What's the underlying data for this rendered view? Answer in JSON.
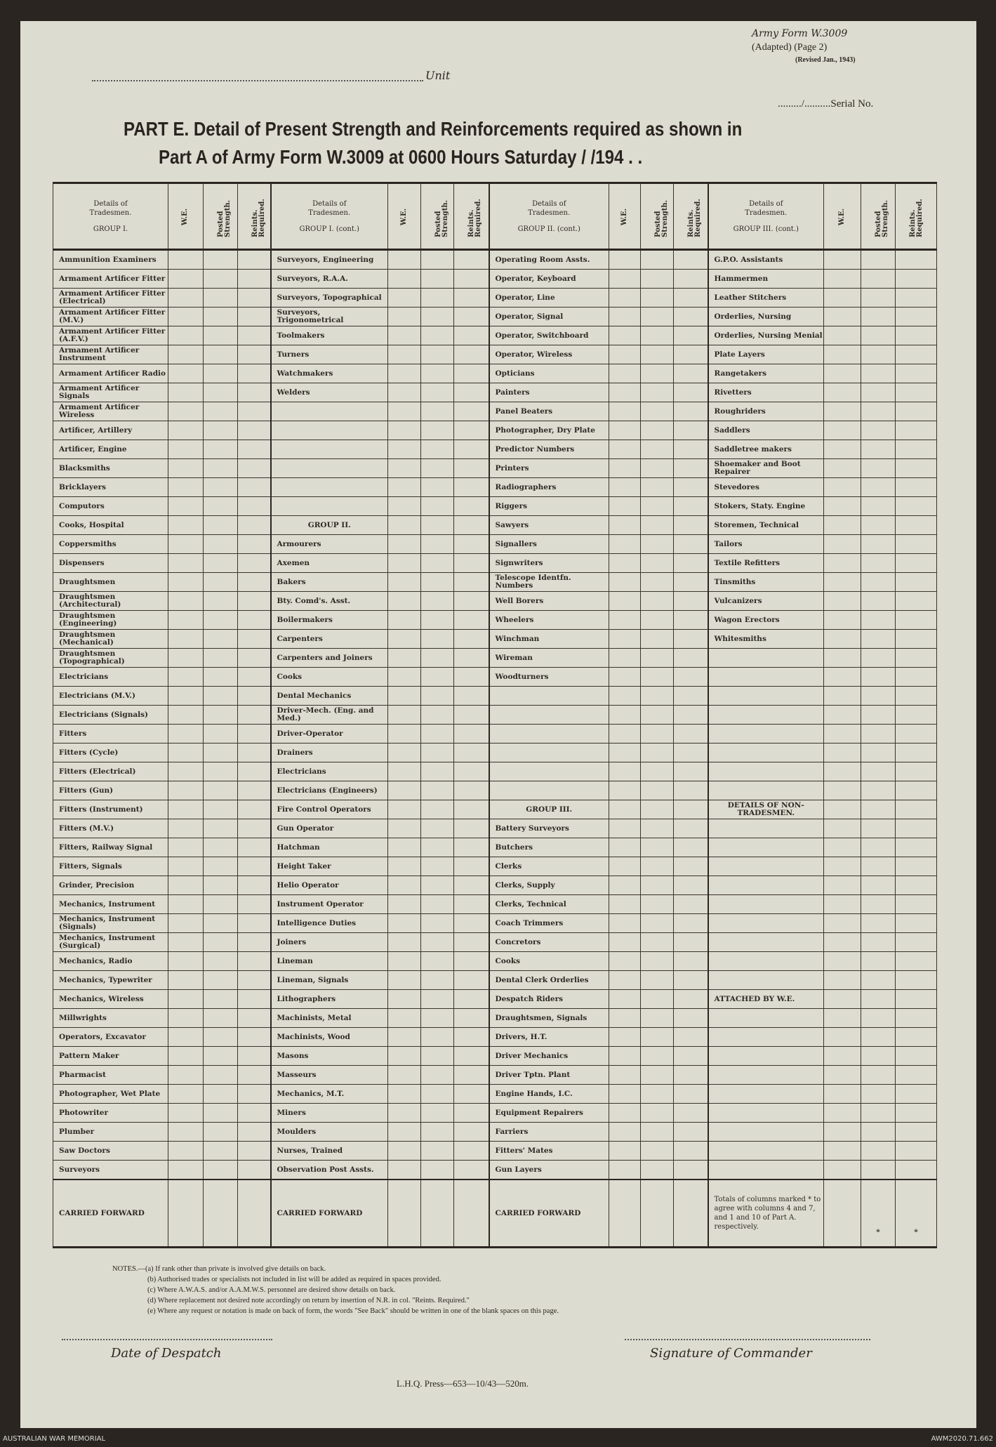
{
  "header": {
    "unit_label": "Unit",
    "form_name": "Army Form W.3009",
    "adapted": "(Adapted) (Page 2)",
    "revised": "(Revised Jan., 1943)",
    "serial_label": "........./..........Serial No."
  },
  "title": {
    "line1": "PART E.  Detail of Present Strength and Reinforcements required as shown in",
    "line2": "Part A of Army Form W.3009 at 0600 Hours Saturday      /      /194  .  ."
  },
  "columns": {
    "we": "W.E.",
    "posted": "Posted Strength.",
    "reinf": "Reints. Required.",
    "details": "Details of Tradesmen."
  },
  "groups": [
    {
      "header": "GROUP I.",
      "rows": [
        "Ammunition Examiners",
        "Armament Artificer Fitter",
        "Armament Artificer Fitter (Electrical)",
        "Armament Artificer Fitter (M.V.)",
        "Armament Artificer Fitter (A.F.V.)",
        "Armament Artificer Instrument",
        "Armament Artificer Radio",
        "Armament Artificer Signals",
        "Armament Artificer Wireless",
        "Artificer, Artillery",
        "Artificer, Engine",
        "Blacksmiths",
        "Bricklayers",
        "Computors",
        "Cooks, Hospital",
        "Coppersmiths",
        "Dispensers",
        "Draughtsmen",
        "Draughtsmen (Architectural)",
        "Draughtsmen (Engineering)",
        "Draughtsmen (Mechanical)",
        "Draughtsmen (Topographical)",
        "Electricians",
        "Electricians (M.V.)",
        "Electricians (Signals)",
        "Fitters",
        "Fitters (Cycle)",
        "Fitters (Electrical)",
        "Fitters (Gun)",
        "Fitters (Instrument)",
        "Fitters (M.V.)",
        "Fitters, Railway Signal",
        "Fitters, Signals",
        "Grinder, Precision",
        "Mechanics, Instrument",
        "Mechanics, Instrument (Signals)",
        "Mechanics, Instrument (Surgical)",
        "Mechanics, Radio",
        "Mechanics, Typewriter",
        "Mechanics, Wireless",
        "Millwrights",
        "Operators, Excavator",
        "Pattern Maker",
        "Pharmacist",
        "Photographer, Wet Plate",
        "Photowriter",
        "Plumber",
        "Saw Doctors",
        "Surveyors"
      ],
      "footer": "CARRIED FORWARD"
    },
    {
      "header": "GROUP I. (cont.)",
      "rows": [
        "Surveyors, Engineering",
        "Surveyors, R.A.A.",
        "Surveyors, Topographical",
        "Surveyors, Trigonometrical",
        "Toolmakers",
        "Turners",
        "Watchmakers",
        "Welders",
        "",
        "",
        "",
        "",
        "",
        "",
        {
          "heading": "GROUP II."
        },
        "Armourers",
        "Axemen",
        "Bakers",
        "Bty. Comd's. Asst.",
        "Boilermakers",
        "Carpenters",
        "Carpenters and Joiners",
        "Cooks",
        "Dental Mechanics",
        "Driver-Mech. (Eng. and Med.)",
        "Driver-Operator",
        "Drainers",
        "Electricians",
        "Electricians (Engineers)",
        "Fire Control Operators",
        "Gun Operator",
        "Hatchman",
        "Height Taker",
        "Helio Operator",
        "Instrument Operator",
        "Intelligence Duties",
        "Joiners",
        "Lineman",
        "Lineman, Signals",
        "Lithographers",
        "Machinists, Metal",
        "Machinists, Wood",
        "Masons",
        "Masseurs",
        "Mechanics, M.T.",
        "Miners",
        "Moulders",
        "Nurses, Trained",
        "Observation Post Assts."
      ],
      "footer": "CARRIED FORWARD"
    },
    {
      "header": "GROUP II. (cont.)",
      "rows": [
        "Operating Room Assts.",
        "Operator, Keyboard",
        "Operator, Line",
        "Operator, Signal",
        "Operator, Switchboard",
        "Operator, Wireless",
        "Opticians",
        "Painters",
        "Panel Beaters",
        "Photographer, Dry Plate",
        "Predictor Numbers",
        "Printers",
        "Radiographers",
        "Riggers",
        "Sawyers",
        "Signallers",
        "Signwriters",
        "Telescope Identfn. Numbers",
        "Well Borers",
        "Wheelers",
        "Winchman",
        "Wireman",
        "Woodturners",
        "",
        "",
        "",
        "",
        "",
        "",
        {
          "heading": "GROUP III."
        },
        "Battery Surveyors",
        "Butchers",
        "Clerks",
        "Clerks, Supply",
        "Clerks, Technical",
        "Coach Trimmers",
        "Concretors",
        "Cooks",
        "Dental Clerk Orderlies",
        "Despatch Riders",
        "Draughtsmen, Signals",
        "Drivers, H.T.",
        "Driver Mechanics",
        "Driver Tptn. Plant",
        "Engine Hands, I.C.",
        "Equipment Repairers",
        "Farriers",
        "Fitters' Mates",
        "Gun Layers"
      ],
      "footer": "CARRIED FORWARD"
    },
    {
      "header": "GROUP III. (cont.)",
      "rows": [
        "G.P.O. Assistants",
        "Hammermen",
        "Leather Stitchers",
        "Orderlies, Nursing",
        "Orderlies, Nursing Menial",
        "Plate Layers",
        "Rangetakers",
        "Rivetters",
        "Roughriders",
        "Saddlers",
        "Saddletree makers",
        "Shoemaker and Boot Repairer",
        "Stevedores",
        "Stokers, Staty. Engine",
        "Storemen, Technical",
        "Tailors",
        "Textile Refitters",
        "Tinsmiths",
        "Vulcanizers",
        "Wagon Erectors",
        "Whitesmiths",
        "",
        "",
        "",
        "",
        "",
        "",
        "",
        "",
        {
          "heading": "DETAILS OF NON-TRADESMEN."
        },
        "",
        "",
        "",
        "",
        "",
        "",
        "",
        "",
        "",
        {
          "heading": "ATTACHED BY W.E.",
          "left": true
        },
        "",
        "",
        "",
        "",
        "",
        "",
        "",
        "",
        ""
      ],
      "footer": "Totals of columns marked * to agree with columns 4 and 7, and 1 and 10 of Part A. respectively.",
      "star": "*"
    }
  ],
  "notes": [
    "NOTES.—(a) If rank other than private is involved give details on back.",
    "(b) Authorised trades or specialists not included in list will be added as required in spaces provided.",
    "(c) Where A.W.A.S. and/or A.A.M.W.S. personnel are desired show details on back.",
    "(d) Where replacement not desired note accordingly on return by insertion of N.R. in col. \"Reints. Required.\"",
    "(e) Where any request or notation is made on back of form, the words \"See Back\" should be written in one of the blank spaces on this page."
  ],
  "signoff": {
    "date": "Date of Despatch",
    "signature": "Signature of Commander",
    "printer": "L.H.Q.  Press—653—10/43—520m."
  },
  "footer": {
    "left": "AUSTRALIAN WAR MEMORIAL",
    "right": "AWM2020.71.662"
  }
}
